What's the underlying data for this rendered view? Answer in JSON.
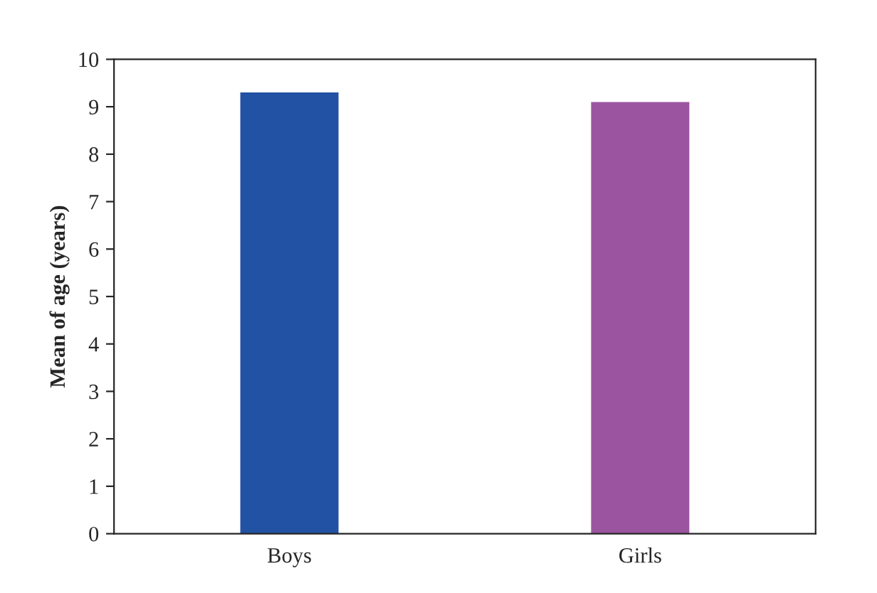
{
  "chart_data": {
    "type": "bar",
    "ylabel": "Mean of age (years)",
    "categories": [
      "Boys",
      "Girls"
    ],
    "values": [
      9.3,
      9.1
    ],
    "colors": [
      "#2152a3",
      "#9b55a0"
    ],
    "ylim": [
      0,
      10
    ],
    "yticks": [
      0,
      1,
      2,
      3,
      4,
      5,
      6,
      7,
      8,
      9,
      10
    ],
    "grid": false
  }
}
